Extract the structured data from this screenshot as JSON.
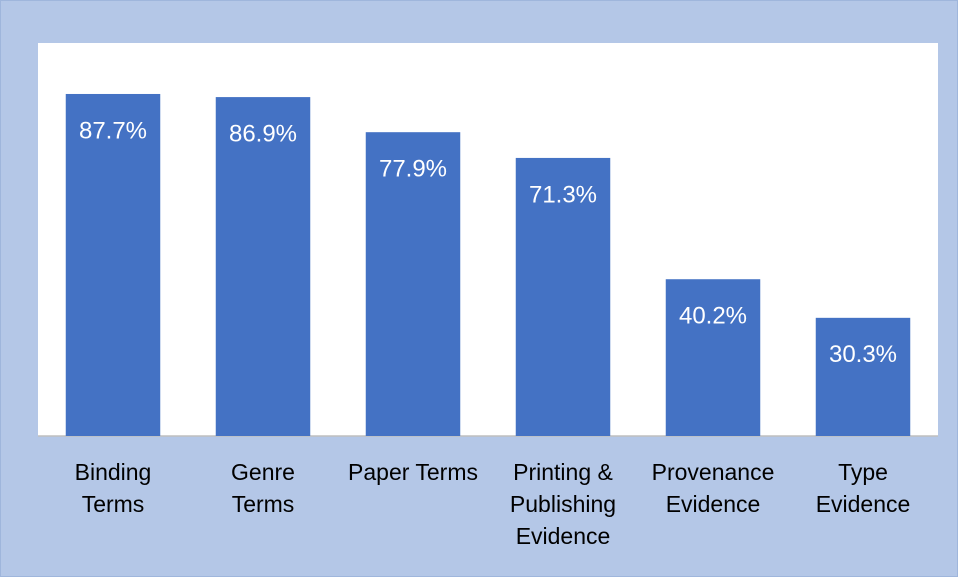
{
  "chart_data": {
    "type": "bar",
    "categories": [
      "Binding\nTerms",
      "Genre\nTerms",
      "Paper Terms",
      "Printing &\nPublishing\nEvidence",
      "Provenance\nEvidence",
      "Type\nEvidence"
    ],
    "values": [
      87.7,
      86.9,
      77.9,
      71.3,
      40.2,
      30.3
    ],
    "value_labels": [
      "87.7%",
      "86.9%",
      "77.9%",
      "71.3%",
      "40.2%",
      "30.3%"
    ],
    "color": "#4472c4",
    "ylim": [
      0,
      100
    ]
  }
}
